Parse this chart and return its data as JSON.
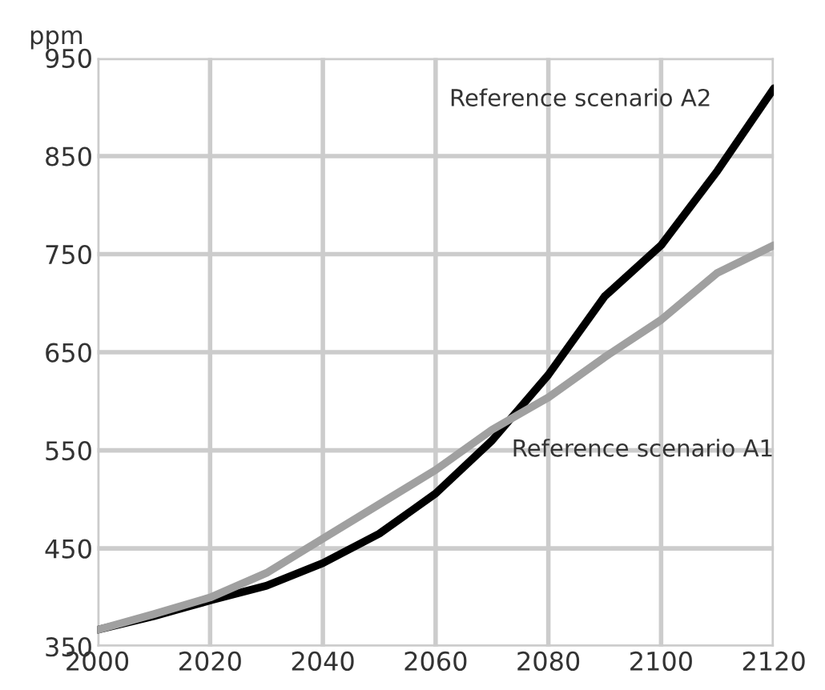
{
  "chart_data": {
    "type": "line",
    "ylabel": "ppm",
    "x": [
      2000,
      2010,
      2020,
      2030,
      2040,
      2050,
      2060,
      2070,
      2080,
      2090,
      2100,
      2110,
      2120
    ],
    "series": [
      {
        "name": "Reference scenario A2",
        "color": "#000000",
        "values": [
          367,
          381,
          397,
          412,
          435,
          465,
          506,
          560,
          627,
          707,
          759,
          835,
          919
        ]
      },
      {
        "name": "Reference scenario A1",
        "color": "#a0a0a0",
        "values": [
          367,
          383,
          400,
          425,
          460,
          495,
          530,
          571,
          604,
          645,
          683,
          731,
          759
        ]
      }
    ],
    "xlim": [
      2000,
      2120
    ],
    "xticks": [
      2000,
      2020,
      2040,
      2060,
      2080,
      2100,
      2120
    ],
    "ylim": [
      350,
      950
    ],
    "yticks": [
      350,
      450,
      550,
      650,
      750,
      850,
      950
    ],
    "grid": true,
    "legend": false,
    "marker": "none",
    "line_style": "solid"
  }
}
